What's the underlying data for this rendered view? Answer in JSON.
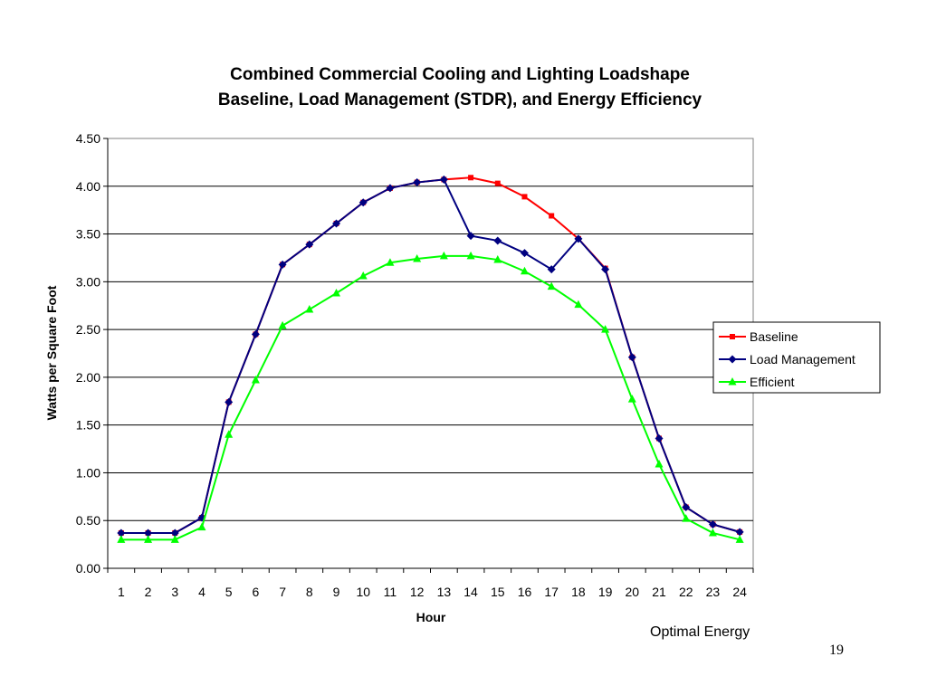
{
  "chart_data": {
    "type": "line",
    "title": [
      "Combined Commercial Cooling and Lighting Loadshape",
      "Baseline, Load Management (STDR), and Energy Efficiency"
    ],
    "xlabel": "Hour",
    "ylabel": "Watts per Square Foot",
    "x": [
      1,
      2,
      3,
      4,
      5,
      6,
      7,
      8,
      9,
      10,
      11,
      12,
      13,
      14,
      15,
      16,
      17,
      18,
      19,
      20,
      21,
      22,
      23,
      24
    ],
    "ylim": [
      0,
      4.5
    ],
    "yticks": [
      "0.00",
      "0.50",
      "1.00",
      "1.50",
      "2.00",
      "2.50",
      "3.00",
      "3.50",
      "4.00",
      "4.50"
    ],
    "grid": "horizontal",
    "legend_position": "right",
    "series": [
      {
        "name": "Baseline",
        "color": "#ff0000",
        "marker": "square",
        "values": [
          0.37,
          0.37,
          0.37,
          0.53,
          1.74,
          2.45,
          3.18,
          3.39,
          3.61,
          3.83,
          3.98,
          4.04,
          4.07,
          4.09,
          4.03,
          3.89,
          3.69,
          3.45,
          3.14,
          2.21,
          1.36,
          0.64,
          0.46,
          0.38
        ]
      },
      {
        "name": "Load Management",
        "color": "#000080",
        "marker": "diamond",
        "values": [
          0.37,
          0.37,
          0.37,
          0.53,
          1.74,
          2.45,
          3.18,
          3.39,
          3.61,
          3.83,
          3.98,
          4.04,
          4.07,
          3.48,
          3.43,
          3.3,
          3.13,
          3.45,
          3.13,
          2.21,
          1.36,
          0.64,
          0.46,
          0.38
        ]
      },
      {
        "name": "Efficient",
        "color": "#00ff00",
        "marker": "triangle",
        "values": [
          0.3,
          0.3,
          0.3,
          0.43,
          1.4,
          1.97,
          2.54,
          2.71,
          2.88,
          3.06,
          3.2,
          3.24,
          3.27,
          3.27,
          3.23,
          3.11,
          2.95,
          2.76,
          2.5,
          1.77,
          1.09,
          0.52,
          0.37,
          0.3
        ]
      }
    ]
  },
  "footer": {
    "brand": "Optimal Energy",
    "slide_number": "19"
  }
}
